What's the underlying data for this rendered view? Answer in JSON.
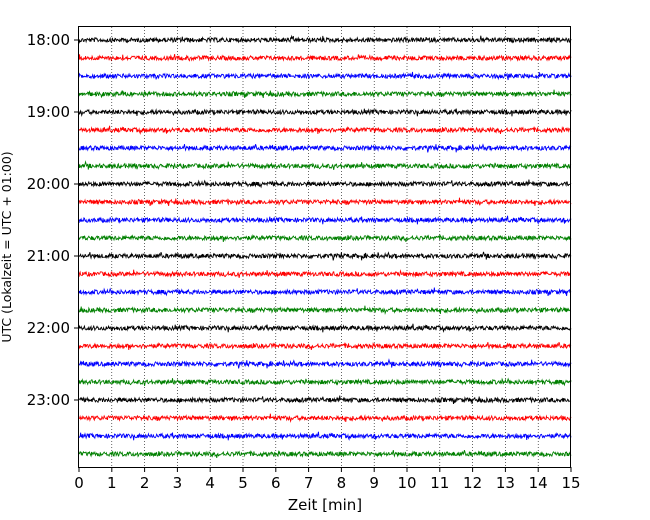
{
  "chart_data": {
    "type": "line",
    "title": "",
    "xlabel": "Zeit  [min]",
    "ylabel": "UTC (Lokalzeit = UTC + 01:00)",
    "xlim": [
      0,
      15
    ],
    "x_ticks": [
      "0",
      "1",
      "2",
      "3",
      "4",
      "5",
      "6",
      "7",
      "8",
      "9",
      "10",
      "11",
      "12",
      "13",
      "14",
      "15"
    ],
    "y_tick_labels": [
      "18:00",
      "19:00",
      "20:00",
      "21:00",
      "22:00",
      "23:00"
    ],
    "x_grid": "dotted vertical at each minute",
    "trace_colors": [
      "#000000",
      "#ff0000",
      "#0000ff",
      "#008000"
    ],
    "traces": [
      {
        "start": "18:00",
        "color": "#000000"
      },
      {
        "start": "18:15",
        "color": "#ff0000"
      },
      {
        "start": "18:30",
        "color": "#0000ff"
      },
      {
        "start": "18:45",
        "color": "#008000"
      },
      {
        "start": "19:00",
        "color": "#000000"
      },
      {
        "start": "19:15",
        "color": "#ff0000"
      },
      {
        "start": "19:30",
        "color": "#0000ff"
      },
      {
        "start": "19:45",
        "color": "#008000"
      },
      {
        "start": "20:00",
        "color": "#000000"
      },
      {
        "start": "20:15",
        "color": "#ff0000"
      },
      {
        "start": "20:30",
        "color": "#0000ff"
      },
      {
        "start": "20:45",
        "color": "#008000"
      },
      {
        "start": "21:00",
        "color": "#000000"
      },
      {
        "start": "21:15",
        "color": "#ff0000"
      },
      {
        "start": "21:30",
        "color": "#0000ff"
      },
      {
        "start": "21:45",
        "color": "#008000"
      },
      {
        "start": "22:00",
        "color": "#000000"
      },
      {
        "start": "22:15",
        "color": "#ff0000"
      },
      {
        "start": "22:30",
        "color": "#0000ff"
      },
      {
        "start": "22:45",
        "color": "#008000"
      },
      {
        "start": "23:00",
        "color": "#000000"
      },
      {
        "start": "23:15",
        "color": "#ff0000"
      },
      {
        "start": "23:30",
        "color": "#0000ff"
      },
      {
        "start": "23:45",
        "color": "#008000"
      }
    ]
  }
}
